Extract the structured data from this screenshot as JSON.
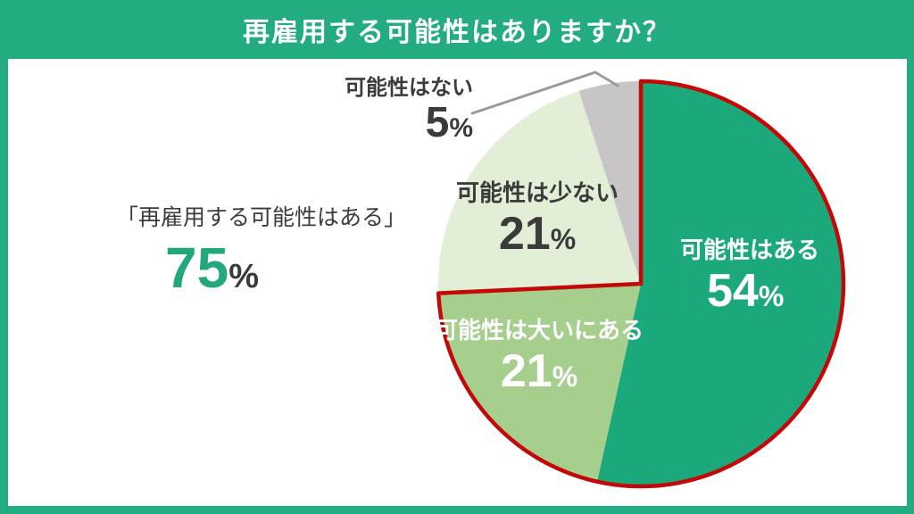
{
  "colors": {
    "brand": "#23ac82",
    "panel": "#ffffff",
    "text_dark": "#3b3b3b",
    "text_light": "#ffffff",
    "accent_value": "#23a87c",
    "outline_red": "#c40808",
    "leader_gray": "#9b9b9b"
  },
  "annotation": {
    "quote": "「再雇用する可能性はある」",
    "value": 75,
    "unit": "%"
  },
  "chart_data": {
    "type": "pie",
    "title": "再雇用する可能性はありますか？",
    "labels": [
      "可能性はある",
      "可能性は大いにある",
      "可能性は少ない",
      "可能性はない"
    ],
    "values": [
      54,
      21,
      21,
      5
    ],
    "colors": [
      "#1ba87a",
      "#a6ce8d",
      "#e2eed6",
      "#c7c5c5"
    ],
    "percent_sign": "%",
    "start_angle_deg": 0,
    "direction": "clockwise",
    "legend": "none",
    "label_placement": "inside slices; smallest slice labeled outside with gray leader line",
    "highlight": {
      "slices": [
        0,
        1
      ],
      "total": 75,
      "description": "combined share of re-employment possibility, outlined in red"
    }
  }
}
